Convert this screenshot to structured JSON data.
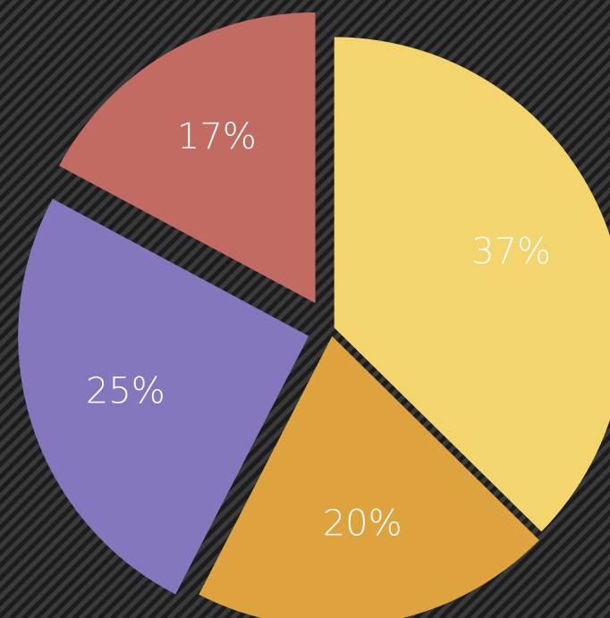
{
  "chart_data": {
    "type": "pie",
    "categories": [
      null,
      null,
      null,
      null
    ],
    "values": [
      37,
      20,
      25,
      17
    ],
    "value_labels": [
      "37%",
      "20%",
      "25%",
      "17%"
    ],
    "colors": [
      "#f4d46c",
      "#dea23e",
      "#8676bd",
      "#c26b63"
    ]
  }
}
